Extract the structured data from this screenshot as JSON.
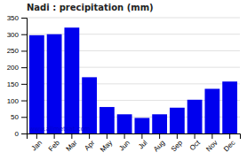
{
  "chart_data": {
    "type": "bar",
    "title": "Nadi : precipitation (mm)",
    "categories": [
      "Jan",
      "Feb",
      "Mar",
      "Apr",
      "May",
      "Jun",
      "Jul",
      "Aug",
      "Sep",
      "Oct",
      "Nov",
      "Dec"
    ],
    "values": [
      297,
      300,
      320,
      170,
      80,
      58,
      47,
      58,
      78,
      102,
      135,
      157
    ],
    "color": "#0000ee",
    "ylim": [
      0,
      350
    ],
    "yticks": [
      0,
      50,
      100,
      150,
      200,
      250,
      300,
      350
    ],
    "grid": true,
    "annotations": [
      "www.allmetsat.com"
    ]
  }
}
